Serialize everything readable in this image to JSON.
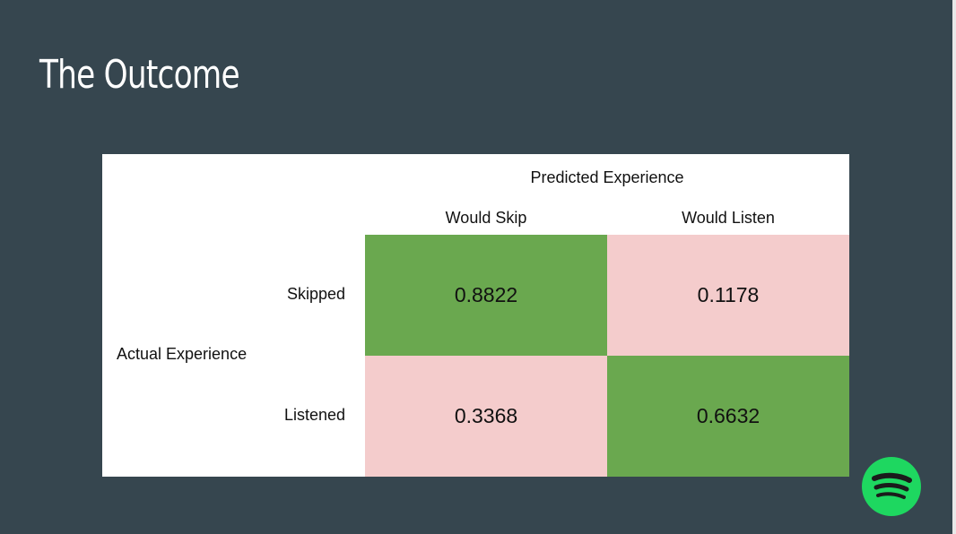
{
  "slide": {
    "title": "The Outcome"
  },
  "matrix": {
    "predicted_header": "Predicted Experience",
    "actual_header": "Actual Experience",
    "columns": [
      "Would Skip",
      "Would Listen"
    ],
    "rows": [
      "Skipped",
      "Listened"
    ],
    "values": [
      [
        "0.8822",
        "0.1178"
      ],
      [
        "0.3368",
        "0.6632"
      ]
    ]
  },
  "colors": {
    "background": "#36464f",
    "correct": "#6aa84f",
    "incorrect": "#f4cccc",
    "brand": "#1ed760"
  },
  "logo": {
    "icon": "spotify-icon"
  }
}
